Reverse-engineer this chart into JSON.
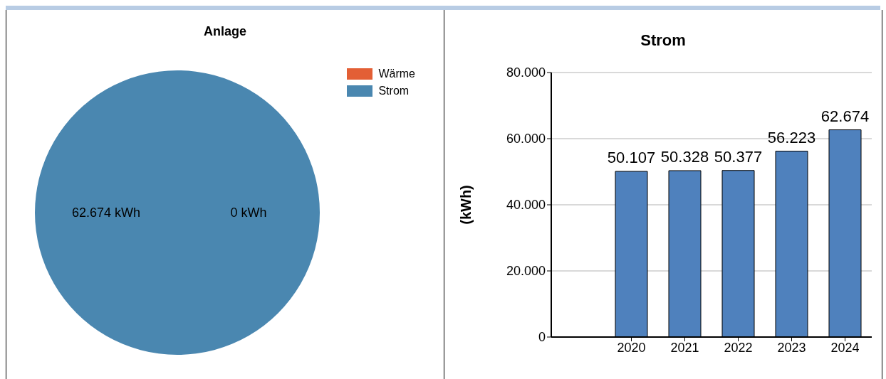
{
  "chart_data": [
    {
      "type": "pie",
      "title": "Anlage",
      "categories": [
        "Wärme",
        "Strom"
      ],
      "values": [
        0,
        62674
      ],
      "colors": [
        "#e35f35",
        "#4a87b0"
      ],
      "value_labels": [
        "0 kWh",
        "62.674 kWh"
      ],
      "legend": "top right"
    },
    {
      "type": "bar",
      "title": "Strom",
      "ylabel": "(kWh)",
      "categories": [
        "2020",
        "2021",
        "2022",
        "2023",
        "2024"
      ],
      "values": [
        50107,
        50328,
        50377,
        56223,
        62674
      ],
      "color": "#4f81bd",
      "value_labels": [
        "50.107",
        "50.328",
        "50.377",
        "56.223",
        "62.674"
      ],
      "ylim": [
        0,
        80000
      ],
      "yticks": [
        0,
        {
          "value": 20000,
          "label": "20.000"
        },
        {
          "value": 40000,
          "label": "40.000"
        },
        {
          "value": 60000,
          "label": "60.000"
        },
        {
          "value": 80000,
          "label": "80.000"
        }
      ],
      "grid": "y"
    }
  ]
}
